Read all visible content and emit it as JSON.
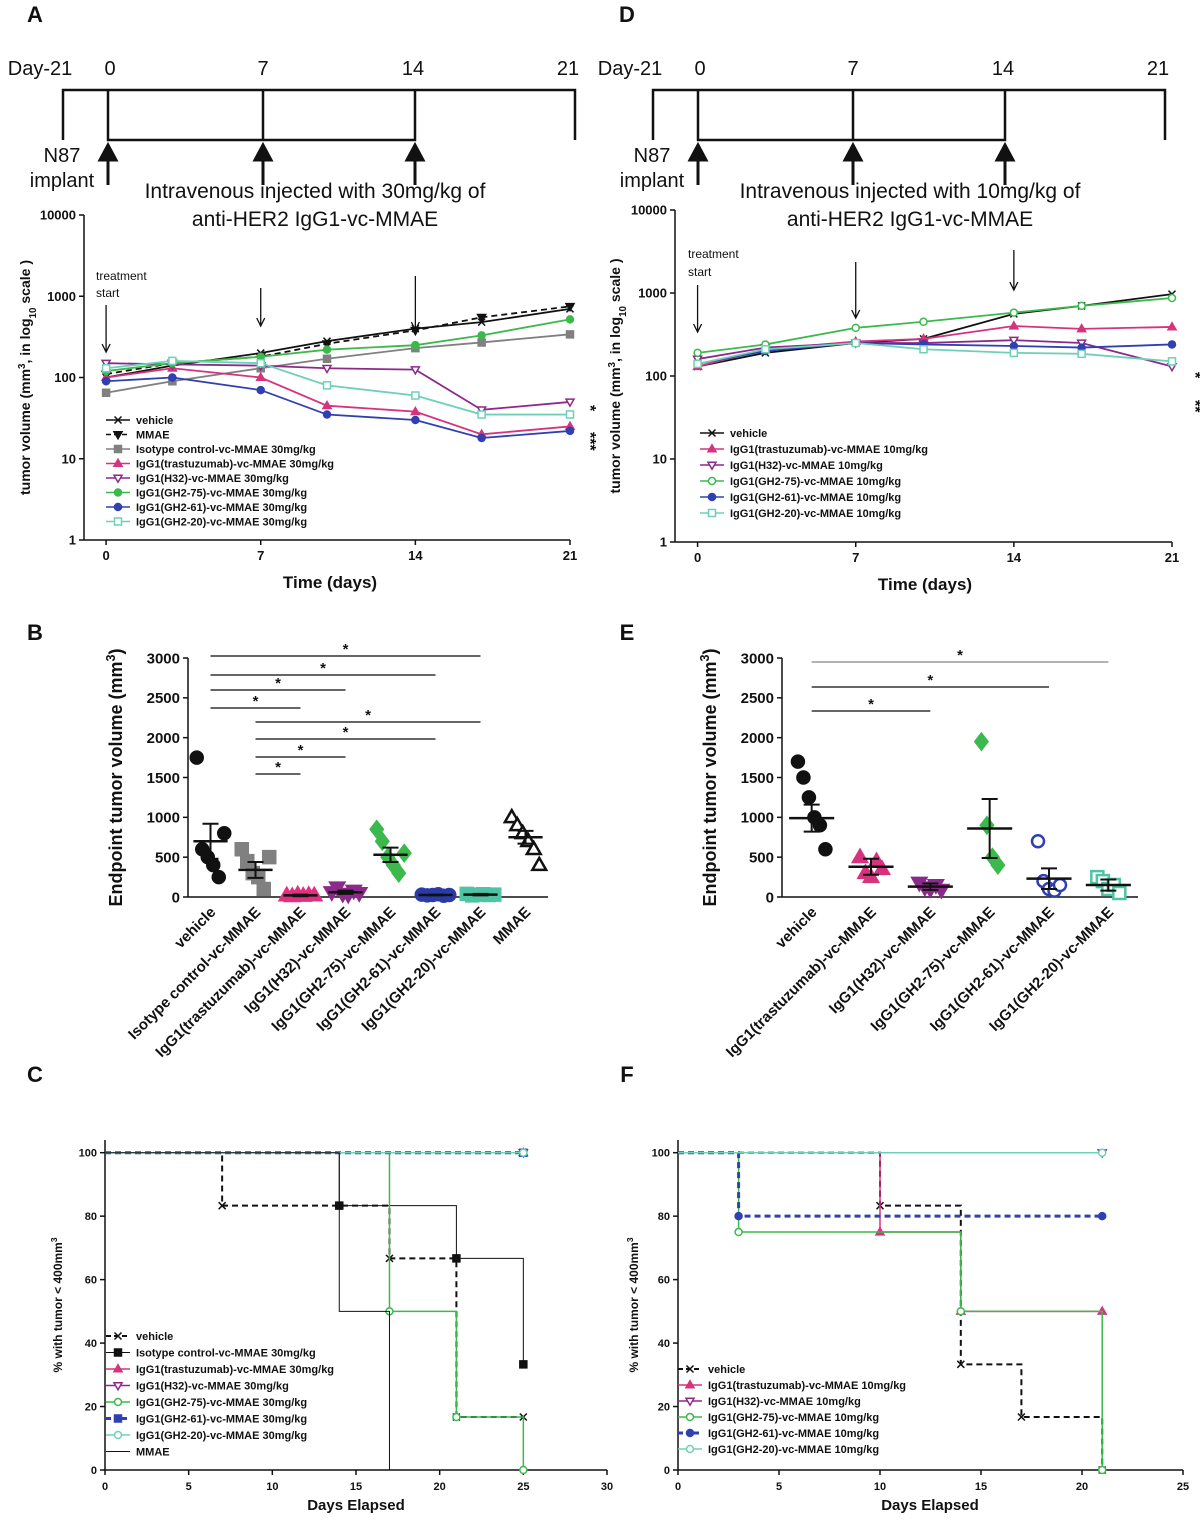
{
  "timelines": [
    {
      "days": [
        "Day-21",
        "0",
        "7",
        "14",
        "21"
      ],
      "implant": [
        "N87",
        "implant"
      ]
    },
    {
      "days": [
        "Day-21",
        "0",
        "7",
        "14",
        "21"
      ],
      "implant": [
        "N87",
        "implant"
      ]
    }
  ],
  "chart_data": [
    {
      "panel": "A",
      "type": "line",
      "title": [
        "Intravenous injected with 30mg/kg of",
        "anti-HER2 IgG1-vc-MMAE"
      ],
      "ylabel": [
        "tumor volume (mm",
        "3",
        ", in log",
        "10",
        " scale )"
      ],
      "xlabel": "Time (days)",
      "x": [
        0,
        3,
        7,
        10,
        14,
        17,
        21
      ],
      "xlim": [
        -1,
        21
      ],
      "xticks": [
        0,
        7,
        14,
        21
      ],
      "ylim": [
        1,
        10000
      ],
      "yticks": [
        1,
        10,
        100,
        1000,
        10000
      ],
      "log_y": true,
      "legend": "lower left",
      "annotations": [
        "treatment",
        "start",
        "*",
        "***"
      ],
      "series": [
        {
          "name": "vehicle",
          "color": "#111111",
          "marker": "x",
          "values": [
            100,
            140,
            200,
            280,
            400,
            480,
            700
          ]
        },
        {
          "name": "MMAE",
          "color": "#111111",
          "marker": "triangle-down",
          "dash": true,
          "values": [
            110,
            150,
            180,
            260,
            380,
            550,
            750
          ]
        },
        {
          "name": "Isotype control-vc-MMAE 30mg/kg",
          "color": "#808080",
          "marker": "square",
          "values": [
            65,
            90,
            130,
            170,
            230,
            270,
            340
          ]
        },
        {
          "name": "IgG1(trastuzumab)-vc-MMAE 30mg/kg",
          "color": "#d6337f",
          "marker": "triangle",
          "values": [
            100,
            130,
            100,
            45,
            38,
            20,
            25
          ]
        },
        {
          "name": "IgG1(H32)-vc-MMAE 30mg/kg",
          "color": "#8b2a8b",
          "marker": "triangle-down-open",
          "values": [
            150,
            145,
            140,
            130,
            125,
            40,
            50
          ]
        },
        {
          "name": "IgG1(GH2-75)-vc-MMAE 30mg/kg",
          "color": "#3cb94c",
          "marker": "circle",
          "values": [
            120,
            150,
            180,
            220,
            250,
            330,
            520
          ]
        },
        {
          "name": "IgG1(GH2-61)-vc-MMAE 30mg/kg",
          "color": "#3040b0",
          "marker": "circle",
          "values": [
            90,
            100,
            70,
            35,
            30,
            18,
            22
          ]
        },
        {
          "name": "IgG1(GH2-20)-vc-MMAE 30mg/kg",
          "color": "#6fd0b8",
          "marker": "square-open",
          "values": [
            130,
            160,
            150,
            80,
            60,
            35,
            35
          ]
        }
      ]
    },
    {
      "panel": "D",
      "type": "line",
      "title": [
        "Intravenous injected with 10mg/kg of",
        "anti-HER2 IgG1-vc-MMAE"
      ],
      "ylabel": [
        "tumor volume (mm",
        "3",
        ", in log",
        "10",
        " scale )"
      ],
      "xlabel": "Time (days)",
      "x": [
        0,
        3,
        7,
        10,
        14,
        17,
        21
      ],
      "xlim": [
        -1,
        21
      ],
      "xticks": [
        0,
        7,
        14,
        21
      ],
      "ylim": [
        1,
        10000
      ],
      "yticks": [
        1,
        10,
        100,
        1000,
        10000
      ],
      "log_y": true,
      "legend": "lower left",
      "annotations": [
        "treatment",
        "start",
        "*",
        "**"
      ],
      "series": [
        {
          "name": "vehicle",
          "color": "#111111",
          "marker": "x",
          "values": [
            130,
            190,
            250,
            280,
            560,
            700,
            970
          ]
        },
        {
          "name": "IgG1(trastuzumab)-vc-MMAE 10mg/kg",
          "color": "#d6337f",
          "marker": "triangle",
          "values": [
            130,
            210,
            260,
            280,
            400,
            370,
            390
          ]
        },
        {
          "name": "IgG1(H32)-vc-MMAE 10mg/kg",
          "color": "#8b2a8b",
          "marker": "triangle-down-open",
          "values": [
            160,
            220,
            250,
            250,
            270,
            250,
            130
          ]
        },
        {
          "name": "IgG1(GH2-75)-vc-MMAE 10mg/kg",
          "color": "#3cb94c",
          "marker": "circle-open",
          "values": [
            190,
            240,
            380,
            450,
            580,
            700,
            870
          ]
        },
        {
          "name": "IgG1(GH2-61)-vc-MMAE 10mg/kg",
          "color": "#3040b0",
          "marker": "circle",
          "values": [
            140,
            200,
            250,
            240,
            230,
            220,
            240
          ]
        },
        {
          "name": "IgG1(GH2-20)-vc-MMAE 10mg/kg",
          "color": "#6fd0b8",
          "marker": "square-open",
          "values": [
            140,
            210,
            250,
            210,
            190,
            185,
            150
          ]
        }
      ]
    },
    {
      "panel": "B",
      "type": "dot",
      "ylabel": [
        "Endpoint tumor volume (mm",
        "3",
        ")"
      ],
      "categories": [
        "vehicle",
        "Isotype control-vc-MMAE",
        "IgG1(trastuzumab)-vc-MMAE",
        "IgG1(H32)-vc-MMAE",
        "IgG1(GH2-75)-vc-MMAE",
        "IgG1(GH2-61)-vc-MMAE",
        "IgG1(GH2-20)-vc-MMAE",
        "MMAE"
      ],
      "colors": [
        "#111111",
        "#808080",
        "#e0307f",
        "#8b2a8b",
        "#3cb94c",
        "#2b3aa8",
        "#4fc4a5",
        "#111111"
      ],
      "markers": [
        "circle",
        "square",
        "triangle",
        "triangle-down",
        "diamond",
        "circle",
        "square",
        "triangle-open"
      ],
      "values": [
        700,
        340,
        20,
        60,
        530,
        25,
        30,
        750
      ],
      "errors": [
        220,
        100,
        10,
        20,
        90,
        5,
        10,
        80
      ],
      "points": [
        [
          1750,
          600,
          500,
          400,
          250,
          800
        ],
        [
          600,
          450,
          300,
          250,
          100,
          500
        ],
        [
          20,
          10,
          30,
          15,
          25,
          20
        ],
        [
          60,
          120,
          40,
          30,
          80,
          50
        ],
        [
          850,
          700,
          500,
          400,
          300,
          550
        ],
        [
          30,
          20,
          25,
          35,
          15,
          25
        ],
        [
          40,
          20,
          30,
          35,
          25,
          30
        ],
        [
          1000,
          900,
          800,
          700,
          600,
          400
        ]
      ],
      "ylim": [
        0,
        3000
      ],
      "yticks": [
        0,
        500,
        1000,
        1500,
        2000,
        2500,
        3000
      ],
      "comparisons": [
        {
          "pair": [
            0,
            6
          ],
          "label": "*"
        },
        {
          "pair": [
            0,
            5
          ],
          "label": "*"
        },
        {
          "pair": [
            0,
            3
          ],
          "label": "*"
        },
        {
          "pair": [
            0,
            2
          ],
          "label": "*"
        },
        {
          "pair": [
            1,
            6
          ],
          "label": "*"
        },
        {
          "pair": [
            1,
            5
          ],
          "label": "*"
        },
        {
          "pair": [
            1,
            3
          ],
          "label": "*"
        },
        {
          "pair": [
            1,
            2
          ],
          "label": "*"
        }
      ]
    },
    {
      "panel": "E",
      "type": "dot",
      "ylabel": [
        "Endpoint tumor volume (mm",
        "3",
        ")"
      ],
      "categories": [
        "vehicle",
        "IgG1(trastuzumab)-vc-MMAE",
        "IgG1(H32)-vc-MMAE",
        "IgG1(GH2-75)-vc-MMAE",
        "IgG1(GH2-61)-vc-MMAE",
        "IgG1(GH2-20)-vc-MMAE"
      ],
      "colors": [
        "#111111",
        "#d6337f",
        "#8b2a8b",
        "#3cb94c",
        "#3040b0",
        "#4fc4a5"
      ],
      "markers": [
        "circle",
        "triangle",
        "triangle-down",
        "diamond",
        "circle-open",
        "square-open"
      ],
      "values": [
        990,
        380,
        130,
        860,
        230,
        150
      ],
      "errors": [
        170,
        100,
        40,
        370,
        130,
        70
      ],
      "points": [
        [
          1700,
          1500,
          1250,
          1000,
          900,
          600
        ],
        [
          500,
          300,
          250,
          450,
          350
        ],
        [
          180,
          120,
          100,
          150,
          90
        ],
        [
          1950,
          900,
          500,
          400
        ],
        [
          700,
          200,
          100,
          80,
          150
        ],
        [
          250,
          200,
          100,
          150,
          50
        ]
      ],
      "ylim": [
        0,
        3000
      ],
      "yticks": [
        0,
        500,
        1000,
        1500,
        2000,
        2500,
        3000
      ],
      "comparisons": [
        {
          "pair": [
            0,
            5
          ],
          "label": "*"
        },
        {
          "pair": [
            0,
            4
          ],
          "label": "*"
        },
        {
          "pair": [
            0,
            2
          ],
          "label": "*"
        }
      ]
    },
    {
      "panel": "C",
      "type": "step",
      "ylabel": [
        "% with tumor < 400mm",
        "3"
      ],
      "xlabel": "Days Elapsed",
      "xlim": [
        0,
        30
      ],
      "xticks": [
        0,
        5,
        10,
        15,
        20,
        25,
        30
      ],
      "ylim": [
        0,
        104
      ],
      "yticks": [
        0,
        20,
        40,
        60,
        80,
        100
      ],
      "legend": "lower left",
      "series": [
        {
          "name": "vehicle",
          "color": "#111111",
          "marker": "x",
          "dash": true,
          "line_width": 2,
          "x": [
            0,
            7,
            17,
            21,
            25
          ],
          "values": [
            100,
            83.3,
            66.7,
            16.7,
            16.7
          ]
        },
        {
          "name": "Isotype control-vc-MMAE 30mg/kg",
          "color": "#111111",
          "marker": "square",
          "line_width": 1,
          "x": [
            0,
            14,
            21,
            25
          ],
          "values": [
            100,
            83.3,
            66.7,
            33.3
          ]
        },
        {
          "name": "IgG1(trastuzumab)-vc-MMAE 30mg/kg",
          "color": "#d6337f",
          "marker": "triangle",
          "x": [
            0,
            25
          ],
          "values": [
            100,
            100
          ]
        },
        {
          "name": "IgG1(H32)-vc-MMAE 30mg/kg",
          "color": "#8b2a8b",
          "marker": "triangle-down-open",
          "x": [
            0,
            25
          ],
          "values": [
            100,
            100
          ]
        },
        {
          "name": "IgG1(GH2-75)-vc-MMAE 30mg/kg",
          "color": "#3cb94c",
          "marker": "circle-open",
          "x": [
            0,
            17,
            21,
            25
          ],
          "values": [
            100,
            50,
            16.7,
            0
          ]
        },
        {
          "name": "IgG1(GH2-61)-vc-MMAE 30mg/kg",
          "color": "#3040b0",
          "marker": "square",
          "dash": true,
          "line_width": 3,
          "x": [
            0,
            25
          ],
          "values": [
            100,
            100
          ]
        },
        {
          "name": "IgG1(GH2-20)-vc-MMAE 30mg/kg",
          "color": "#6fd0b8",
          "marker": "circle-open",
          "x": [
            0,
            25
          ],
          "values": [
            100,
            100
          ]
        },
        {
          "name": "MMAE",
          "color": "#111111",
          "marker": "none",
          "line_width": 1,
          "x": [
            0,
            14,
            17
          ],
          "values": [
            100,
            50,
            0
          ]
        }
      ]
    },
    {
      "panel": "F",
      "type": "step",
      "ylabel": [
        "% with tumor < 400mm",
        "3"
      ],
      "xlabel": "Days Elapsed",
      "xlim": [
        0,
        25
      ],
      "xticks": [
        0,
        5,
        10,
        15,
        20,
        25
      ],
      "ylim": [
        0,
        104
      ],
      "yticks": [
        0,
        20,
        40,
        60,
        80,
        100
      ],
      "legend": "lower left",
      "series": [
        {
          "name": "vehicle",
          "color": "#111111",
          "marker": "x",
          "dash": true,
          "line_width": 2,
          "x": [
            0,
            10,
            14,
            17,
            21
          ],
          "values": [
            100,
            83.3,
            33.3,
            16.7,
            0
          ]
        },
        {
          "name": "IgG1(trastuzumab)-vc-MMAE 10mg/kg",
          "color": "#d6337f",
          "marker": "triangle",
          "x": [
            0,
            10,
            14,
            21
          ],
          "values": [
            100,
            75,
            50,
            50
          ]
        },
        {
          "name": "IgG1(H32)-vc-MMAE 10mg/kg",
          "color": "#8b2a8b",
          "marker": "triangle-down-open",
          "x": [
            0,
            21
          ],
          "values": [
            100,
            100
          ]
        },
        {
          "name": "IgG1(GH2-75)-vc-MMAE 10mg/kg",
          "color": "#3cb94c",
          "marker": "circle-open",
          "x": [
            0,
            3,
            14,
            21
          ],
          "values": [
            100,
            75,
            50,
            0
          ]
        },
        {
          "name": "IgG1(GH2-61)-vc-MMAE 10mg/kg",
          "color": "#3040b0",
          "marker": "circle",
          "dash": true,
          "line_width": 3,
          "x": [
            0,
            3,
            21
          ],
          "values": [
            100,
            80,
            80
          ]
        },
        {
          "name": "IgG1(GH2-20)-vc-MMAE 10mg/kg",
          "color": "#6fd0b8",
          "marker": "circle-open",
          "x": [
            0,
            21
          ],
          "values": [
            100,
            100
          ]
        }
      ]
    }
  ]
}
